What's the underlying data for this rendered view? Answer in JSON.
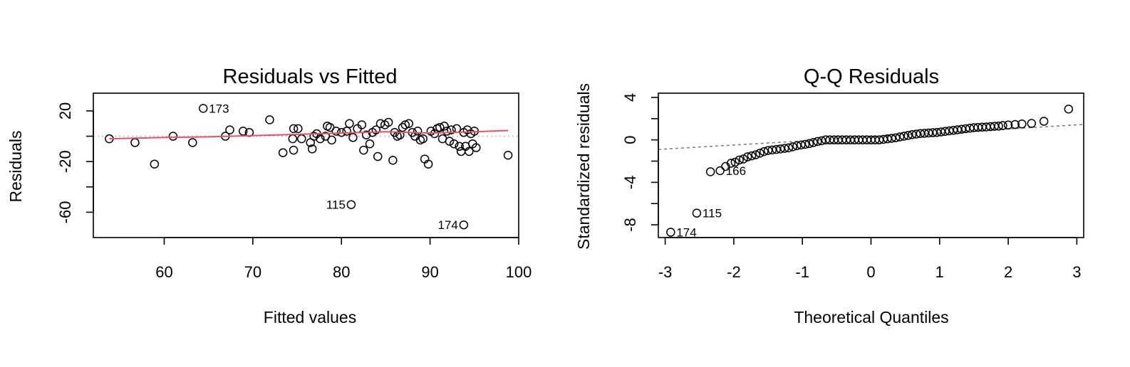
{
  "chart_data": [
    {
      "type": "scatter",
      "title": "Residuals vs Fitted",
      "xlabel": "Fitted values",
      "ylabel": "Residuals",
      "xlim": [
        52,
        100
      ],
      "ylim": [
        -80,
        34
      ],
      "xticks": [
        60,
        70,
        80,
        90,
        100
      ],
      "yticks": [
        20,
        0,
        -20,
        -40,
        -60
      ],
      "ytick_labels": [
        "20",
        "",
        "-20",
        "",
        "-60"
      ],
      "reference_line": {
        "y": 0,
        "style": "dotted",
        "color": "#bebebe"
      },
      "smooth_line": {
        "color": "#df536b",
        "x": [
          53.8,
          60,
          65,
          70,
          75,
          80,
          85,
          90,
          95,
          98.8
        ],
        "y": [
          -2,
          -1,
          -0.5,
          0.5,
          1.5,
          2.5,
          3.5,
          2.5,
          3.5,
          4.5
        ]
      },
      "points": [
        [
          53.8,
          -2
        ],
        [
          56.7,
          -5
        ],
        [
          58.9,
          -22
        ],
        [
          61,
          0
        ],
        [
          63.2,
          -5
        ],
        [
          64.4,
          22
        ],
        [
          66.9,
          0
        ],
        [
          67.4,
          5
        ],
        [
          68.9,
          4
        ],
        [
          69.6,
          3
        ],
        [
          71.9,
          13
        ],
        [
          73.4,
          -13
        ],
        [
          74.5,
          -2
        ],
        [
          74.6,
          -11
        ],
        [
          74.6,
          6
        ],
        [
          75.1,
          6
        ],
        [
          75.5,
          -2
        ],
        [
          76.5,
          -5
        ],
        [
          76.7,
          -10
        ],
        [
          76.9,
          0
        ],
        [
          77.2,
          2
        ],
        [
          77.6,
          -2
        ],
        [
          78.2,
          0
        ],
        [
          78.4,
          8
        ],
        [
          78.7,
          7
        ],
        [
          78.9,
          -3
        ],
        [
          79.4,
          4
        ],
        [
          80,
          3
        ],
        [
          80.6,
          4
        ],
        [
          80.9,
          10
        ],
        [
          81.3,
          -1
        ],
        [
          81.8,
          6
        ],
        [
          82.3,
          9
        ],
        [
          82.5,
          -11
        ],
        [
          82.8,
          1
        ],
        [
          83.2,
          -6
        ],
        [
          83.5,
          3
        ],
        [
          83.9,
          5
        ],
        [
          84.1,
          -16
        ],
        [
          84.4,
          10
        ],
        [
          84.9,
          9
        ],
        [
          85.3,
          11
        ],
        [
          85.8,
          -19
        ],
        [
          86,
          3
        ],
        [
          86.3,
          0
        ],
        [
          86.6,
          1
        ],
        [
          86.9,
          7
        ],
        [
          87.2,
          9
        ],
        [
          87.6,
          10
        ],
        [
          88,
          3
        ],
        [
          88.3,
          0
        ],
        [
          88.6,
          4
        ],
        [
          88.9,
          -3
        ],
        [
          89.2,
          -2
        ],
        [
          89.4,
          -18
        ],
        [
          89.8,
          -22
        ],
        [
          90.1,
          4
        ],
        [
          90.5,
          2
        ],
        [
          90.8,
          6
        ],
        [
          91.1,
          7
        ],
        [
          91.4,
          -2
        ],
        [
          91.6,
          8
        ],
        [
          91.9,
          4
        ],
        [
          92.2,
          -4
        ],
        [
          92.4,
          5
        ],
        [
          92.7,
          -6
        ],
        [
          93,
          6
        ],
        [
          93.3,
          -8
        ],
        [
          93.5,
          -12
        ],
        [
          93.8,
          3
        ],
        [
          94,
          -8
        ],
        [
          94.2,
          5
        ],
        [
          94.4,
          -12
        ],
        [
          94.6,
          2
        ],
        [
          94.8,
          -6
        ],
        [
          95,
          4
        ],
        [
          95.2,
          -9
        ],
        [
          93.8,
          -70
        ],
        [
          81.1,
          -54
        ],
        [
          98.8,
          -15
        ]
      ],
      "labels": [
        {
          "text": "173",
          "x": 64.4,
          "y": 22,
          "side": "right"
        },
        {
          "text": "115",
          "x": 81.1,
          "y": -54,
          "side": "left"
        },
        {
          "text": "174",
          "x": 93.8,
          "y": -70,
          "side": "left"
        }
      ]
    },
    {
      "type": "scatter",
      "title": "Q-Q Residuals",
      "xlabel": "Theoretical Quantiles",
      "ylabel": "Standardized residuals",
      "xlim": [
        -3.1,
        3.1
      ],
      "ylim": [
        -9.2,
        4.4
      ],
      "xticks": [
        -3,
        -2,
        -1,
        0,
        1,
        2,
        3
      ],
      "yticks": [
        4,
        2,
        0,
        -2,
        -4,
        -6,
        -8
      ],
      "ytick_labels": [
        "4",
        "",
        "0",
        "",
        "-4",
        "",
        "-8"
      ],
      "reference_line": {
        "x1": -3.1,
        "y1": -0.9,
        "x2": 3.1,
        "y2": 1.45,
        "style": "dashed",
        "color": "#808080"
      },
      "labels": [
        {
          "text": "166",
          "x": -2.2,
          "y": -2.9,
          "side": "right"
        },
        {
          "text": "115",
          "x": -2.54,
          "y": -6.9,
          "side": "right"
        },
        {
          "text": "174",
          "x": -2.92,
          "y": -8.7,
          "side": "right"
        }
      ],
      "points": [
        [
          -2.92,
          -8.7
        ],
        [
          -2.54,
          -6.9
        ],
        [
          -2.34,
          -3.0
        ],
        [
          -2.2,
          -2.9
        ],
        [
          -2.12,
          -2.5
        ],
        [
          -2.04,
          -2.2
        ],
        [
          -1.98,
          -2.1
        ],
        [
          -1.92,
          -1.9
        ],
        [
          -1.86,
          -1.8
        ],
        [
          -1.8,
          -1.6
        ],
        [
          -1.74,
          -1.5
        ],
        [
          -1.68,
          -1.4
        ],
        [
          -1.62,
          -1.25
        ],
        [
          -1.56,
          -1.1
        ],
        [
          -1.5,
          -1.0
        ],
        [
          -1.44,
          -0.95
        ],
        [
          -1.38,
          -0.9
        ],
        [
          -1.32,
          -0.85
        ],
        [
          -1.26,
          -0.8
        ],
        [
          -1.2,
          -0.75
        ],
        [
          -1.14,
          -0.65
        ],
        [
          -1.08,
          -0.55
        ],
        [
          -1.02,
          -0.48
        ],
        [
          -0.96,
          -0.42
        ],
        [
          -0.9,
          -0.35
        ],
        [
          -0.84,
          -0.25
        ],
        [
          -0.78,
          -0.15
        ],
        [
          -0.72,
          -0.08
        ],
        [
          -0.66,
          0.0
        ],
        [
          -0.6,
          0.0
        ],
        [
          -0.54,
          0.0
        ],
        [
          -0.48,
          0.0
        ],
        [
          -0.42,
          0.0
        ],
        [
          -0.36,
          0.0
        ],
        [
          -0.3,
          0.0
        ],
        [
          -0.24,
          0.0
        ],
        [
          -0.18,
          0.0
        ],
        [
          -0.12,
          0.0
        ],
        [
          -0.06,
          0.0
        ],
        [
          0.0,
          0.0
        ],
        [
          0.06,
          0.0
        ],
        [
          0.12,
          0.0
        ],
        [
          0.18,
          0.05
        ],
        [
          0.24,
          0.1
        ],
        [
          0.3,
          0.15
        ],
        [
          0.36,
          0.2
        ],
        [
          0.42,
          0.28
        ],
        [
          0.48,
          0.35
        ],
        [
          0.54,
          0.42
        ],
        [
          0.6,
          0.5
        ],
        [
          0.66,
          0.55
        ],
        [
          0.72,
          0.6
        ],
        [
          0.78,
          0.62
        ],
        [
          0.84,
          0.65
        ],
        [
          0.9,
          0.68
        ],
        [
          0.96,
          0.7
        ],
        [
          1.02,
          0.75
        ],
        [
          1.08,
          0.8
        ],
        [
          1.14,
          0.85
        ],
        [
          1.2,
          0.9
        ],
        [
          1.26,
          0.95
        ],
        [
          1.32,
          1.0
        ],
        [
          1.38,
          1.05
        ],
        [
          1.44,
          1.1
        ],
        [
          1.5,
          1.15
        ],
        [
          1.56,
          1.18
        ],
        [
          1.62,
          1.2
        ],
        [
          1.68,
          1.22
        ],
        [
          1.74,
          1.25
        ],
        [
          1.8,
          1.28
        ],
        [
          1.86,
          1.3
        ],
        [
          1.92,
          1.35
        ],
        [
          2.0,
          1.4
        ],
        [
          2.1,
          1.45
        ],
        [
          2.2,
          1.5
        ],
        [
          2.34,
          1.55
        ],
        [
          2.52,
          1.75
        ],
        [
          2.88,
          2.9
        ]
      ]
    }
  ]
}
